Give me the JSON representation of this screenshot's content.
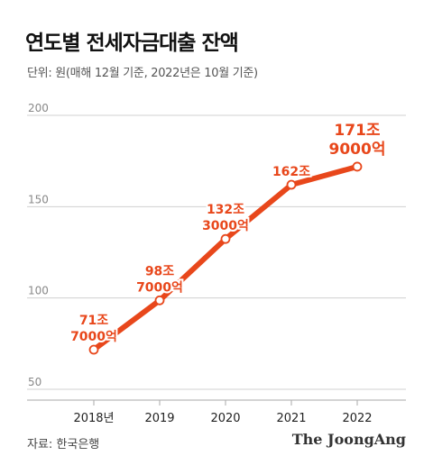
{
  "header": {
    "title": "연도별 전세자금대출 잔액",
    "subtitle": "단위: 원(매해 12월 기준, 2022년은 10월 기준)"
  },
  "footer": {
    "source": "자료: 한국은행",
    "brand": "The JoongAng"
  },
  "colors": {
    "line": "#e8471b",
    "grid": "#d0d0d0"
  },
  "chart_data": {
    "type": "line",
    "categories": [
      "2018년",
      "2019",
      "2020",
      "2021",
      "2022"
    ],
    "values": [
      71.7,
      98.7,
      132.3,
      162,
      171.9
    ],
    "data_labels": [
      [
        "71조",
        "7000억"
      ],
      [
        "98조",
        "7000억"
      ],
      [
        "132조",
        "3000억"
      ],
      [
        "162조"
      ],
      [
        "171조",
        "9000억"
      ]
    ],
    "yticks": [
      50,
      100,
      150,
      200
    ],
    "ylim": [
      50,
      200
    ],
    "grid": true,
    "title": "연도별 전세자금대출 잔액",
    "xlabel": "",
    "ylabel": ""
  }
}
